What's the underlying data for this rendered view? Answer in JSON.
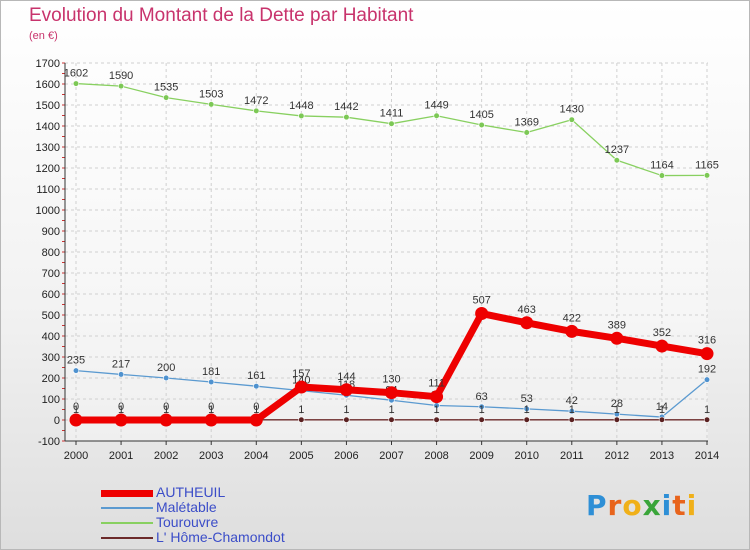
{
  "title": "Evolution du Montant de la Dette par Habitant",
  "subtitle": "(en €)",
  "logo": {
    "text": "Proxiti",
    "letter_colors": [
      "#2e8fd6",
      "#e8641c",
      "#f0b019",
      "#3aa53a",
      "#2e8fd6",
      "#e8641c",
      "#f0b019"
    ]
  },
  "chart_data": {
    "type": "line",
    "x": [
      2000,
      2001,
      2002,
      2003,
      2004,
      2005,
      2006,
      2007,
      2008,
      2009,
      2010,
      2011,
      2012,
      2013,
      2014
    ],
    "ylim": [
      -100,
      1700
    ],
    "yticks": [
      -100,
      0,
      100,
      200,
      300,
      400,
      500,
      600,
      700,
      800,
      900,
      1000,
      1100,
      1200,
      1300,
      1400,
      1500,
      1600,
      1700
    ],
    "grid": true,
    "legend_position": "bottom-left",
    "series": [
      {
        "name": "Tourouvre",
        "color": "#88d060",
        "point_color": "#7cc855",
        "thick": false,
        "values": [
          1602,
          1590,
          1535,
          1503,
          1472,
          1448,
          1442,
          1411,
          1449,
          1405,
          1369,
          1430,
          1237,
          1164,
          1165
        ],
        "labels": [
          "1602",
          "1590",
          "1535",
          "1503",
          "1472",
          "1448",
          "1442",
          "1411",
          "1449",
          "1405",
          "1369",
          "1430",
          "1237",
          "1164",
          "1165"
        ]
      },
      {
        "name": "Malétable",
        "color": "#5b9ad0",
        "point_color": "#4f92cf",
        "thick": false,
        "values": [
          235,
          217,
          200,
          181,
          161,
          140,
          118,
          94,
          69,
          63,
          53,
          42,
          28,
          14,
          192
        ],
        "labels": [
          "235",
          "217",
          "200",
          "181",
          "161",
          "140",
          "118",
          "94",
          "69",
          "63",
          "53",
          "42",
          "28",
          "14",
          "192"
        ]
      },
      {
        "name": "L' Hôme-Chamondot",
        "color": "#6b2a2a",
        "point_color": "#5a2020",
        "thick": false,
        "values": [
          1,
          1,
          1,
          1,
          1,
          1,
          1,
          1,
          1,
          1,
          1,
          1,
          1,
          1,
          1
        ],
        "labels": [
          "1",
          "1",
          "1",
          "1",
          "1",
          "1",
          "1",
          "1",
          "1",
          "1",
          "1",
          "1",
          "1",
          "1",
          "1"
        ]
      },
      {
        "name": "AUTHEUIL",
        "color": "#ee0000",
        "point_color": "#ee0000",
        "thick": true,
        "values": [
          0,
          0,
          0,
          0,
          0,
          157,
          144,
          130,
          111,
          507,
          463,
          422,
          389,
          352,
          316
        ],
        "labels": [
          "0",
          "0",
          "0",
          "0",
          "0",
          "157",
          "144",
          "130",
          "111",
          "507",
          "463",
          "422",
          "389",
          "352",
          "316"
        ]
      }
    ],
    "legend": [
      "AUTHEUIL",
      "Malétable",
      "Tourouvre",
      "L' Hôme-Chamondot"
    ]
  }
}
